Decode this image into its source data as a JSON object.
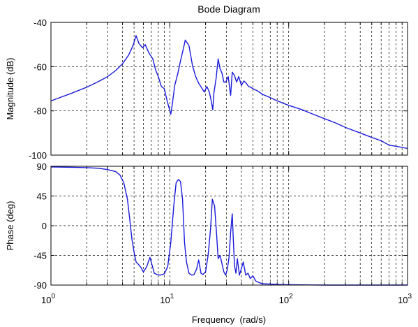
{
  "chart_data": {
    "type": "line",
    "title": "Bode Diagram",
    "xlabel": "Frequency  (rad/s)",
    "xscale": "log",
    "xlim": [
      1,
      1000
    ],
    "xtick_labels": [
      {
        "base": "10",
        "exp": "0"
      },
      {
        "base": "10",
        "exp": "1"
      },
      {
        "base": "10",
        "exp": "2"
      },
      {
        "base": "10",
        "exp": "3"
      }
    ],
    "grid": true,
    "colors": {
      "curve": "#1a1adb"
    },
    "panels": [
      {
        "ylabel": "Magnitude (dB)",
        "ylim": [
          -100,
          -40
        ],
        "yticks": [
          -40,
          -60,
          -80,
          -100
        ],
        "series": [
          {
            "x": [
              1,
              1.5,
              2,
              2.5,
              3,
              3.5,
              4,
              4.5,
              4.9,
              5.2,
              5.5,
              5.9,
              6.2,
              6.7,
              7.2,
              7.6,
              8,
              8.5,
              9,
              9.5,
              10.2,
              10.5,
              11,
              11.7,
              12.3,
              13,
              13.5,
              14.5,
              15.5,
              16.5,
              17.5,
              18.5,
              19.5,
              20.5,
              21.5,
              22.3,
              23,
              23.5,
              24.5,
              25.5,
              26.5,
              27.5,
              28.5,
              29.5,
              31,
              32.5,
              33.5,
              35,
              36.5,
              38,
              40,
              42,
              44,
              46,
              48,
              50,
              55,
              60,
              70,
              80,
              100,
              130,
              160,
              200,
              250,
              300,
              400,
              500,
              600,
              700,
              800,
              1000
            ],
            "y": [
              -75.5,
              -72,
              -69.3,
              -66.8,
              -64.5,
              -61.8,
              -58.7,
              -54.8,
              -50.5,
              -46,
              -49.5,
              -51.5,
              -50,
              -54,
              -56.5,
              -61.5,
              -64.5,
              -69,
              -70,
              -75.5,
              -81.5,
              -77,
              -68.5,
              -63,
              -57.5,
              -52,
              -48,
              -50.5,
              -59.5,
              -64.5,
              -67.5,
              -69.5,
              -71.5,
              -69,
              -71.5,
              -75.5,
              -79.5,
              -72,
              -65.5,
              -56.5,
              -61,
              -63,
              -67,
              -67,
              -64.5,
              -73,
              -62.5,
              -64,
              -67,
              -64.5,
              -68.5,
              -66.5,
              -67.5,
              -69,
              -69.3,
              -70,
              -71,
              -72.5,
              -74,
              -75.5,
              -77.5,
              -79.5,
              -81.5,
              -83.5,
              -85.5,
              -87.5,
              -90,
              -92,
              -93.5,
              -95.5,
              -96,
              -97
            ]
          }
        ]
      },
      {
        "ylabel": "Phase (deg)",
        "ylim": [
          -90,
          90
        ],
        "yticks": [
          90,
          45,
          0,
          -45,
          -90
        ],
        "series": [
          {
            "x": [
              1,
              1.5,
              2,
              2.5,
              3,
              3.5,
              3.8,
              4.1,
              4.4,
              4.6,
              4.8,
              5,
              5.2,
              5.4,
              5.7,
              6,
              6.4,
              6.8,
              7.1,
              7.4,
              7.8,
              8.3,
              9,
              9.6,
              10.2,
              10.8,
              11.3,
              11.8,
              12.3,
              12.8,
              13.3,
              13.8,
              14.5,
              15.3,
              16,
              16.8,
              17.5,
              18.3,
              19,
              20,
              21,
              22,
              22.8,
              23.8,
              24.8,
              25.5,
              26.5,
              27.5,
              28.5,
              29.5,
              30.5,
              31.5,
              32.5,
              33.5,
              34.2,
              35,
              36,
              37,
              38.5,
              40,
              41.5,
              43.5,
              45.5,
              47.5,
              50,
              53,
              56,
              60,
              70,
              80,
              90,
              100,
              150,
              200,
              300,
              500,
              700,
              1000
            ],
            "y": [
              89,
              88.5,
              88,
              87,
              85,
              82,
              77,
              65,
              40,
              10,
              -20,
              -40,
              -55,
              -58,
              -63,
              -70,
              -62,
              -48,
              -60,
              -72,
              -74,
              -75,
              -73,
              -62,
              -25,
              30,
              65,
              70,
              67,
              40,
              -25,
              -55,
              -72,
              -75,
              -74,
              -66,
              -52,
              -72,
              -74,
              -70,
              -45,
              -5,
              40,
              30,
              -15,
              -50,
              -45,
              -58,
              -70,
              -75,
              -66,
              -48,
              -10,
              18,
              -20,
              -60,
              -72,
              -50,
              -75,
              -65,
              -55,
              -75,
              -72,
              -80,
              -76,
              -84,
              -86,
              -88,
              -88.5,
              -89,
              -89.5,
              -89.5,
              -89.8,
              -90,
              -90,
              -90,
              -90,
              -90
            ]
          }
        ]
      }
    ]
  }
}
